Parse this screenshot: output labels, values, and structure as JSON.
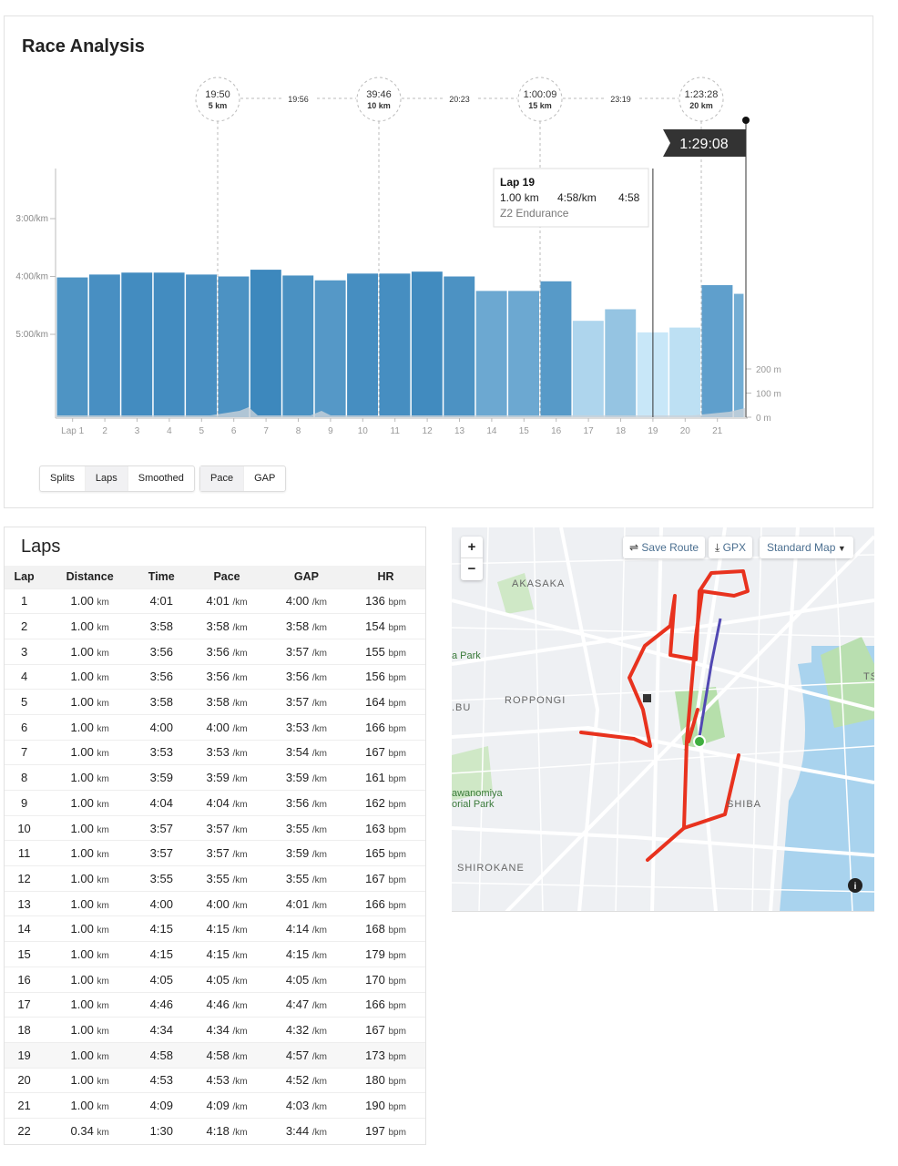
{
  "race_analysis": {
    "title": "Race Analysis",
    "view_buttons": [
      {
        "label": "Splits",
        "active": false
      },
      {
        "label": "Laps",
        "active": true
      },
      {
        "label": "Smoothed",
        "active": false
      }
    ],
    "metric_buttons": [
      {
        "label": "Pace",
        "active": true
      },
      {
        "label": "GAP",
        "active": false
      }
    ],
    "tooltip": {
      "title": "Lap 19",
      "distance": "1.00 km",
      "pace": "4:58/km",
      "time": "4:58",
      "zone": "Z2 Endurance"
    },
    "finish_time": "1:29:08"
  },
  "chart_data": {
    "type": "bar",
    "y_axis_ticks": [
      "3:00/km",
      "4:00/km",
      "5:00/km"
    ],
    "elevation_ticks": [
      "200 m",
      "100 m",
      "0 m"
    ],
    "x_ticks": [
      "Lap 1",
      "2",
      "3",
      "4",
      "5",
      "6",
      "7",
      "8",
      "9",
      "10",
      "11",
      "12",
      "13",
      "14",
      "15",
      "16",
      "17",
      "18",
      "19",
      "20",
      "21"
    ],
    "laps_distance_km": [
      1,
      1,
      1,
      1,
      1,
      1,
      1,
      1,
      1,
      1,
      1,
      1,
      1,
      1,
      1,
      1,
      1,
      1,
      1,
      1,
      1,
      0.34
    ],
    "laps_pace": [
      "4:01",
      "3:58",
      "3:56",
      "3:56",
      "3:58",
      "4:00",
      "3:53",
      "3:59",
      "4:04",
      "3:57",
      "3:57",
      "3:55",
      "4:00",
      "4:15",
      "4:15",
      "4:05",
      "4:46",
      "4:34",
      "4:58",
      "4:53",
      "4:09",
      "4:18"
    ],
    "splits": [
      {
        "time": "19:50",
        "distance": "5 km",
        "km": 5
      },
      {
        "time": "39:46",
        "distance": "10 km",
        "km": 10
      },
      {
        "time": "1:00:09",
        "distance": "15 km",
        "km": 15
      },
      {
        "time": "1:23:28",
        "distance": "20 km",
        "km": 20
      }
    ],
    "split_intervals": [
      "19:56",
      "20:23",
      "23:19"
    ],
    "highlighted_lap": 19,
    "colors": {
      "fast": "#3d88bd",
      "slow": "#c8e7f8",
      "marker": "#333333"
    }
  },
  "laps": {
    "title": "Laps",
    "columns": [
      "Lap",
      "Distance",
      "Time",
      "Pace",
      "GAP",
      "HR"
    ],
    "rows": [
      [
        "1",
        "1.00",
        "4:01",
        "4:01",
        "4:00",
        "136"
      ],
      [
        "2",
        "1.00",
        "3:58",
        "3:58",
        "3:58",
        "154"
      ],
      [
        "3",
        "1.00",
        "3:56",
        "3:56",
        "3:57",
        "155"
      ],
      [
        "4",
        "1.00",
        "3:56",
        "3:56",
        "3:56",
        "156"
      ],
      [
        "5",
        "1.00",
        "3:58",
        "3:58",
        "3:57",
        "164"
      ],
      [
        "6",
        "1.00",
        "4:00",
        "4:00",
        "3:53",
        "166"
      ],
      [
        "7",
        "1.00",
        "3:53",
        "3:53",
        "3:54",
        "167"
      ],
      [
        "8",
        "1.00",
        "3:59",
        "3:59",
        "3:59",
        "161"
      ],
      [
        "9",
        "1.00",
        "4:04",
        "4:04",
        "3:56",
        "162"
      ],
      [
        "10",
        "1.00",
        "3:57",
        "3:57",
        "3:55",
        "163"
      ],
      [
        "11",
        "1.00",
        "3:57",
        "3:57",
        "3:59",
        "165"
      ],
      [
        "12",
        "1.00",
        "3:55",
        "3:55",
        "3:55",
        "167"
      ],
      [
        "13",
        "1.00",
        "4:00",
        "4:00",
        "4:01",
        "166"
      ],
      [
        "14",
        "1.00",
        "4:15",
        "4:15",
        "4:14",
        "168"
      ],
      [
        "15",
        "1.00",
        "4:15",
        "4:15",
        "4:15",
        "179"
      ],
      [
        "16",
        "1.00",
        "4:05",
        "4:05",
        "4:05",
        "170"
      ],
      [
        "17",
        "1.00",
        "4:46",
        "4:46",
        "4:47",
        "166"
      ],
      [
        "18",
        "1.00",
        "4:34",
        "4:34",
        "4:32",
        "167"
      ],
      [
        "19",
        "1.00",
        "4:58",
        "4:58",
        "4:57",
        "173"
      ],
      [
        "20",
        "1.00",
        "4:53",
        "4:53",
        "4:52",
        "180"
      ],
      [
        "21",
        "1.00",
        "4:09",
        "4:09",
        "4:03",
        "190"
      ],
      [
        "22",
        "0.34",
        "1:30",
        "4:18",
        "3:44",
        "197"
      ]
    ],
    "units": {
      "distance": "km",
      "pace": "/km",
      "hr": "bpm"
    }
  },
  "map": {
    "save_route": "Save Route",
    "gpx": "GPX",
    "map_type": "Standard Map",
    "zoom_in": "+",
    "zoom_out": "−",
    "labels": [
      "AKASAKA",
      "ROPPONGI",
      "SHIBA",
      "SHIROKANE",
      ".BU",
      "a Park",
      "awanomiya",
      "orial Park",
      "TS"
    ],
    "route_color": "#e8321e"
  }
}
